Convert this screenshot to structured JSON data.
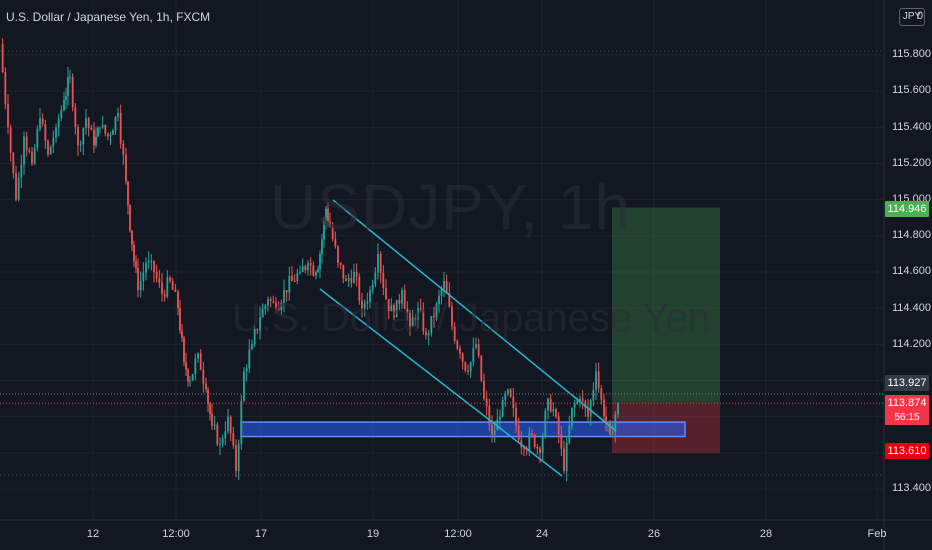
{
  "header": {
    "symbol_title": "U.S. Dollar / Japanese Yen, 1h, FXCM",
    "currency_badge": "JPY",
    "currency_suffix": "0"
  },
  "watermark": {
    "ticker": "USDJPY, 1h",
    "name": "U.S. Dollar / Japanese Yen"
  },
  "price_axis": {
    "ticks": [
      "115.800",
      "115.600",
      "115.400",
      "115.200",
      "115.000",
      "114.800",
      "114.600",
      "114.400",
      "114.200",
      "113.400"
    ]
  },
  "time_axis": {
    "labels": [
      "12",
      "12:00",
      "17",
      "19",
      "12:00",
      "24",
      "26",
      "28",
      "Feb"
    ]
  },
  "price_tags": {
    "target": {
      "label": "114.946",
      "color": "#4caf50"
    },
    "high_marker": {
      "label": "113.927",
      "color": "#363a45"
    },
    "current": {
      "label": "113.874",
      "color": "#f23645"
    },
    "countdown": {
      "label": "56:15",
      "color": "#f23645"
    },
    "stop": {
      "label": "113.610",
      "color": "#e8000b"
    }
  },
  "colors": {
    "background": "#131722",
    "candle_up": "#26a69a",
    "candle_down": "#ef5350",
    "channel_lines": "#22b8cf",
    "support_zone": "#2962ff",
    "profit_zone": "#4caf50",
    "loss_zone": "#f23645",
    "grid": "#1e222d"
  },
  "drawings": {
    "descending_channel": {
      "upper": [
        [
          114.99
        ],
        [
          113.8
        ]
      ],
      "lower": [
        [
          114.52
        ],
        [
          113.29
        ]
      ]
    },
    "support_zone": {
      "top": 113.77,
      "bottom": 113.69
    },
    "long_position": {
      "entry": 113.874,
      "target": 114.946,
      "stop": 113.61
    }
  },
  "chart_data": {
    "type": "candlestick",
    "x": [
      "12",
      "12:00",
      "17",
      "19",
      "12:00",
      "24",
      "26",
      "28",
      "Feb"
    ],
    "ylim": [
      113.3,
      116.0
    ],
    "path": [
      [
        0,
        115.86
      ],
      [
        8,
        115.4
      ],
      [
        16,
        115.0
      ],
      [
        24,
        115.35
      ],
      [
        32,
        115.2
      ],
      [
        40,
        115.45
      ],
      [
        48,
        115.25
      ],
      [
        56,
        115.4
      ],
      [
        64,
        115.55
      ],
      [
        70,
        115.68
      ],
      [
        78,
        115.3
      ],
      [
        86,
        115.45
      ],
      [
        94,
        115.3
      ],
      [
        100,
        115.4
      ],
      [
        108,
        115.35
      ],
      [
        118,
        115.48
      ],
      [
        126,
        115.1
      ],
      [
        132,
        114.75
      ],
      [
        138,
        114.5
      ],
      [
        146,
        114.65
      ],
      [
        154,
        114.6
      ],
      [
        162,
        114.48
      ],
      [
        170,
        114.55
      ],
      [
        178,
        114.4
      ],
      [
        184,
        114.1
      ],
      [
        190,
        114.0
      ],
      [
        198,
        114.15
      ],
      [
        206,
        113.95
      ],
      [
        212,
        113.75
      ],
      [
        220,
        113.65
      ],
      [
        228,
        113.8
      ],
      [
        236,
        113.5
      ],
      [
        244,
        114.05
      ],
      [
        252,
        114.2
      ],
      [
        260,
        114.35
      ],
      [
        268,
        114.45
      ],
      [
        276,
        114.4
      ],
      [
        284,
        114.5
      ],
      [
        292,
        114.55
      ],
      [
        300,
        114.6
      ],
      [
        308,
        114.65
      ],
      [
        316,
        114.6
      ],
      [
        320,
        114.7
      ],
      [
        326,
        114.95
      ],
      [
        330,
        114.85
      ],
      [
        338,
        114.65
      ],
      [
        346,
        114.55
      ],
      [
        354,
        114.6
      ],
      [
        362,
        114.4
      ],
      [
        370,
        114.5
      ],
      [
        378,
        114.7
      ],
      [
        386,
        114.45
      ],
      [
        394,
        114.35
      ],
      [
        402,
        114.5
      ],
      [
        410,
        114.3
      ],
      [
        418,
        114.4
      ],
      [
        426,
        114.25
      ],
      [
        434,
        114.35
      ],
      [
        444,
        114.55
      ],
      [
        452,
        114.3
      ],
      [
        460,
        114.15
      ],
      [
        468,
        114.05
      ],
      [
        476,
        114.2
      ],
      [
        484,
        113.9
      ],
      [
        492,
        113.7
      ],
      [
        500,
        113.8
      ],
      [
        508,
        113.95
      ],
      [
        516,
        113.75
      ],
      [
        524,
        113.62
      ],
      [
        532,
        113.7
      ],
      [
        540,
        113.6
      ],
      [
        548,
        113.9
      ],
      [
        556,
        113.8
      ],
      [
        564,
        113.5
      ],
      [
        572,
        113.85
      ],
      [
        580,
        113.9
      ],
      [
        588,
        113.8
      ],
      [
        596,
        114.05
      ],
      [
        604,
        113.8
      ],
      [
        610,
        113.7
      ],
      [
        618,
        113.874
      ]
    ]
  }
}
